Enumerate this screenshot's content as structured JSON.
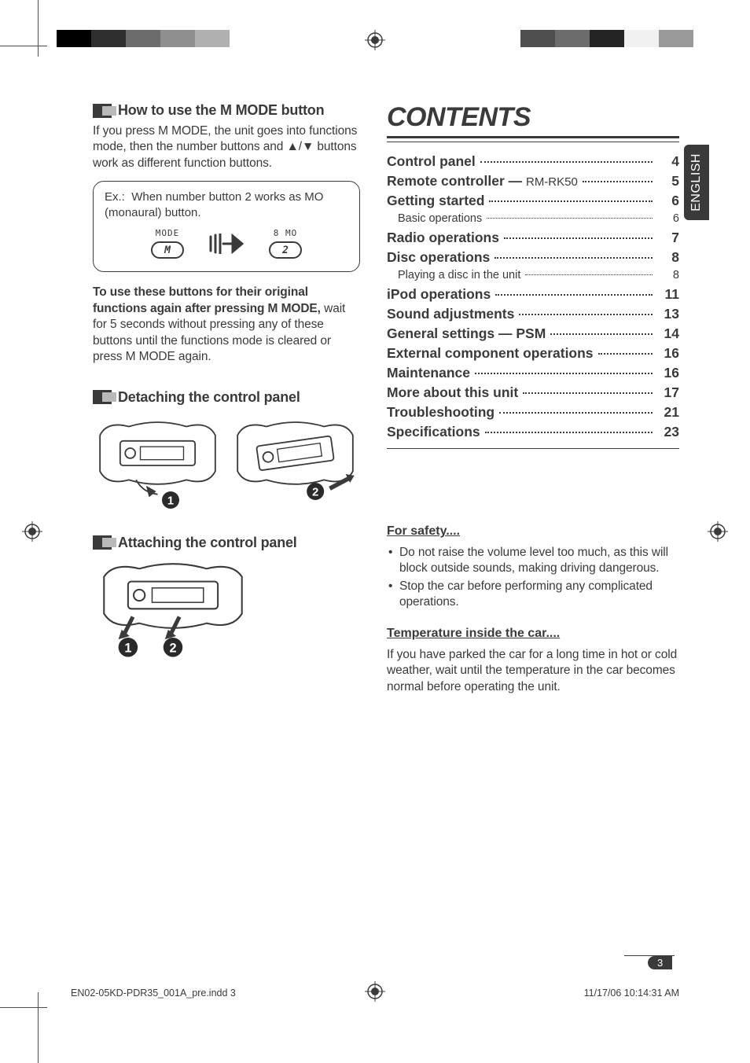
{
  "page": {
    "language_tab": "ENGLISH",
    "page_number": "3",
    "footer_left": "EN02-05KD-PDR35_001A_pre.indd   3",
    "footer_right": "11/17/06   10:14:31 AM"
  },
  "colors": {
    "text": "#3a3a3a",
    "bg": "#ffffff",
    "top_swatches_left": [
      "#000000",
      "#2f2f2f",
      "#6c6c6c",
      "#8f8f8f",
      "#b0b0b0"
    ],
    "top_swatches_right": [
      "#4f4f4f",
      "#6c6c6c",
      "#242424",
      "#f1f1f1",
      "#9a9a9a"
    ]
  },
  "left": {
    "h_mmode": "How to use the M MODE button",
    "mmode_p": "If you press M MODE, the unit goes into functions mode, then the number buttons and ▲/▼ buttons work as different function buttons.",
    "ex_prefix": "Ex.:",
    "ex_text": "When number button 2 works as MO (monaural) button.",
    "btn_mode_label": "MODE",
    "btn_mode_glyph": "M",
    "btn_mo_label": "8  MO",
    "btn_mo_glyph": "2",
    "note_bold": "To use these buttons for their original functions again after pressing M MODE,",
    "note_rest": " wait for 5 seconds without pressing any of these buttons until the functions mode is cleared or press M MODE again.",
    "h_detach": "Detaching the control panel",
    "h_attach": "Attaching the control panel"
  },
  "contents": {
    "title": "CONTENTS",
    "items": [
      {
        "label": "Control panel",
        "page": "4",
        "sub": []
      },
      {
        "label": "Remote controller — ",
        "suffix": "RM-RK50",
        "page": "5",
        "sub": []
      },
      {
        "label": "Getting started",
        "page": "6",
        "sub": [
          {
            "label": "Basic operations",
            "page": "6"
          }
        ]
      },
      {
        "label": "Radio operations",
        "page": "7",
        "sub": []
      },
      {
        "label": "Disc operations",
        "page": "8",
        "sub": [
          {
            "label": "Playing a disc in the unit",
            "page": "8"
          }
        ]
      },
      {
        "label": "iPod operations",
        "page": "11",
        "sub": []
      },
      {
        "label": "Sound adjustments",
        "page": "13",
        "sub": []
      },
      {
        "label": "General settings — PSM",
        "page": "14",
        "sub": []
      },
      {
        "label": "External component operations",
        "page": "16",
        "sub": []
      },
      {
        "label": "Maintenance",
        "page": "16",
        "sub": []
      },
      {
        "label": "More about this unit",
        "page": "17",
        "sub": []
      },
      {
        "label": "Troubleshooting",
        "page": "21",
        "sub": []
      },
      {
        "label": "Specifications",
        "page": "23",
        "sub": []
      }
    ]
  },
  "safety": {
    "h1": "For safety....",
    "b1": "Do not raise the volume level too much, as this will block outside sounds, making driving dangerous.",
    "b2": "Stop the car before performing any complicated operations.",
    "h2": "Temperature inside the car....",
    "p2": "If you have parked the car for a long time in hot or cold weather, wait until the temperature in the car becomes normal before operating the unit."
  }
}
